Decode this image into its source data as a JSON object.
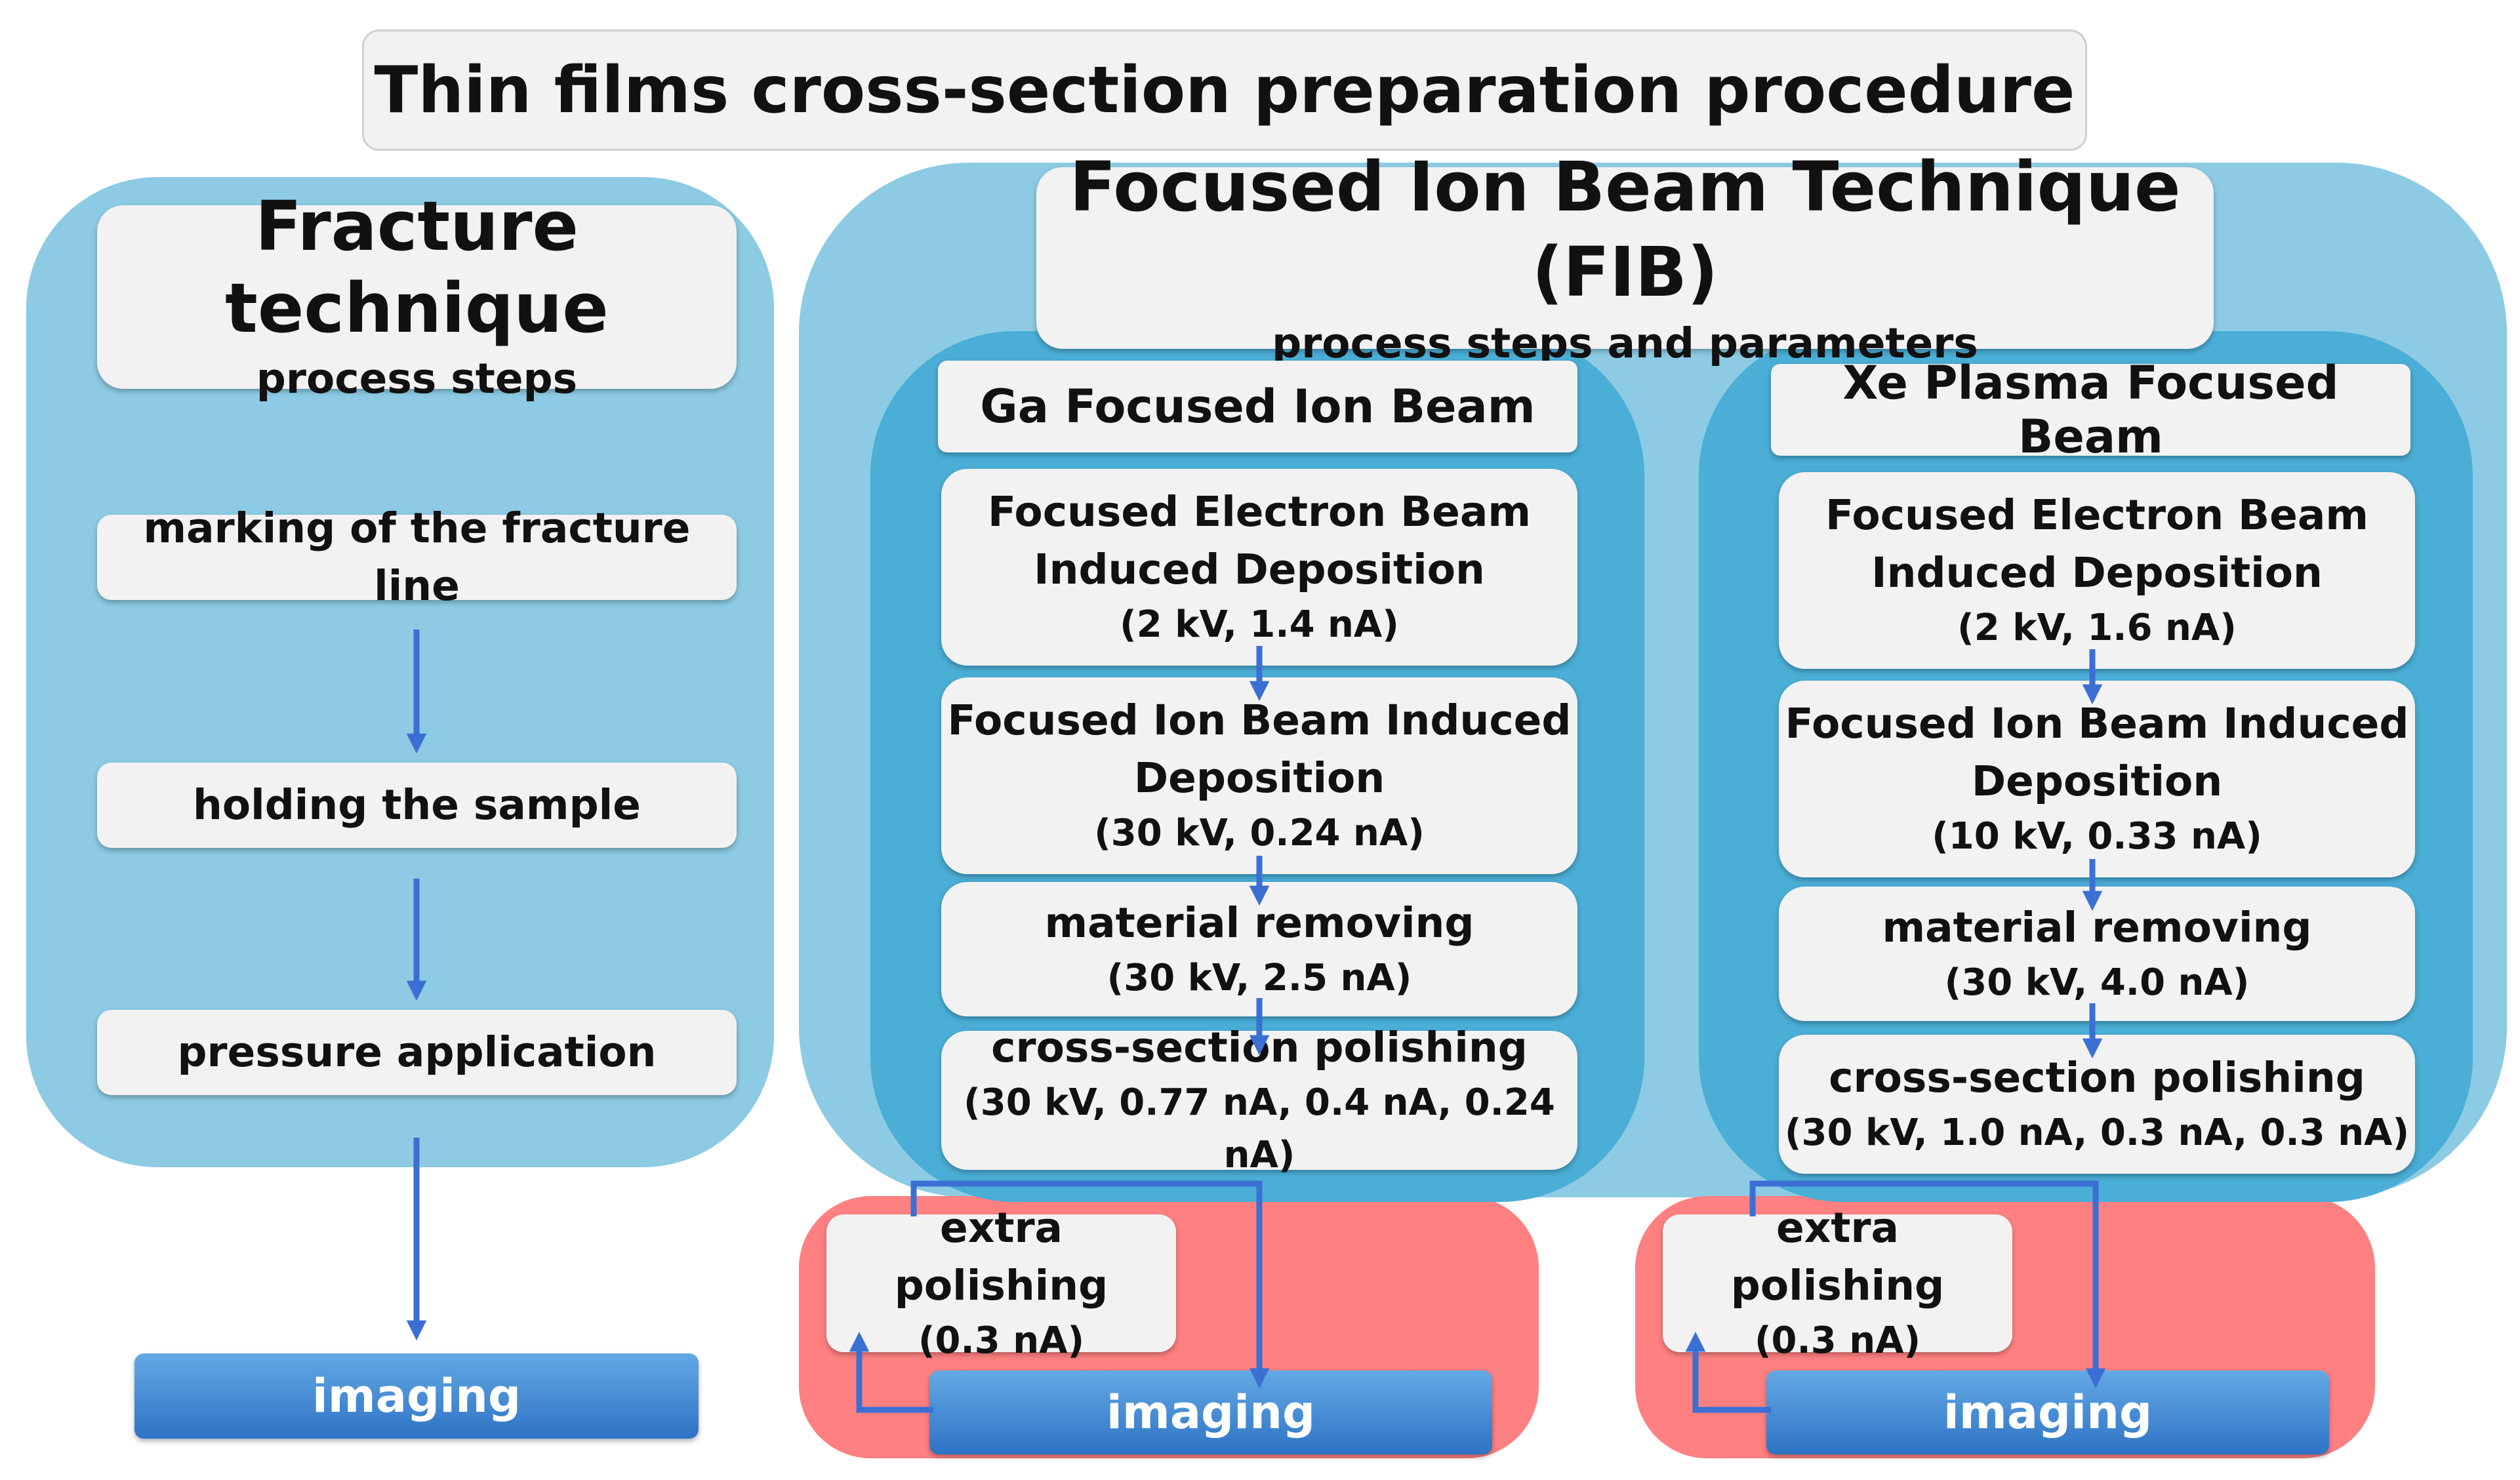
{
  "title": "Thin films cross-section preparation procedure",
  "fracture": {
    "title": "Fracture technique",
    "subtitle": "process steps",
    "steps": [
      "marking of the fracture line",
      "holding the sample",
      "pressure application"
    ],
    "imaging": "imaging"
  },
  "fib": {
    "title": "Focused Ion Beam Technique (FIB)",
    "subtitle": "process steps and parameters",
    "columns": [
      {
        "name": "Ga Focused Ion Beam",
        "steps": [
          {
            "lines": [
              "Focused Electron Beam",
              "Induced Deposition"
            ],
            "param": "(2 kV, 1.4 nA)"
          },
          {
            "lines": [
              "Focused Ion Beam Induced",
              "Deposition"
            ],
            "param": "(30 kV, 0.24 nA)"
          },
          {
            "lines": [
              "material removing"
            ],
            "param": "(30 kV, 2.5 nA)"
          },
          {
            "lines": [
              "cross-section polishing"
            ],
            "param": "(30 kV, 0.77 nA, 0.4 nA, 0.24 nA)"
          }
        ],
        "extra": {
          "label": "extra polishing",
          "param": "(0.3 nA)"
        },
        "imaging": "imaging"
      },
      {
        "name": "Xe Plasma Focused Beam",
        "steps": [
          {
            "lines": [
              "Focused Electron Beam",
              "Induced Deposition"
            ],
            "param": "(2 kV, 1.6 nA)"
          },
          {
            "lines": [
              "Focused Ion Beam Induced",
              "Deposition"
            ],
            "param": "(10 kV, 0.33 nA)"
          },
          {
            "lines": [
              "material removing"
            ],
            "param": "(30 kV, 4.0 nA)"
          },
          {
            "lines": [
              "cross-section polishing"
            ],
            "param": "(30 kV, 1.0 nA, 0.3 nA, 0.3 nA)"
          }
        ],
        "extra": {
          "label": "extra polishing",
          "param": "(0.3 nA)"
        },
        "imaging": "imaging"
      }
    ]
  },
  "colors": {
    "panel_light": "#8ccbe3",
    "panel_dark": "#4aaed6",
    "feedback_red": "#ff8080",
    "arrow_blue": "#3b6fd4",
    "imaging_blue": "#3b83d1",
    "box_grey": "#f2f2f2"
  }
}
